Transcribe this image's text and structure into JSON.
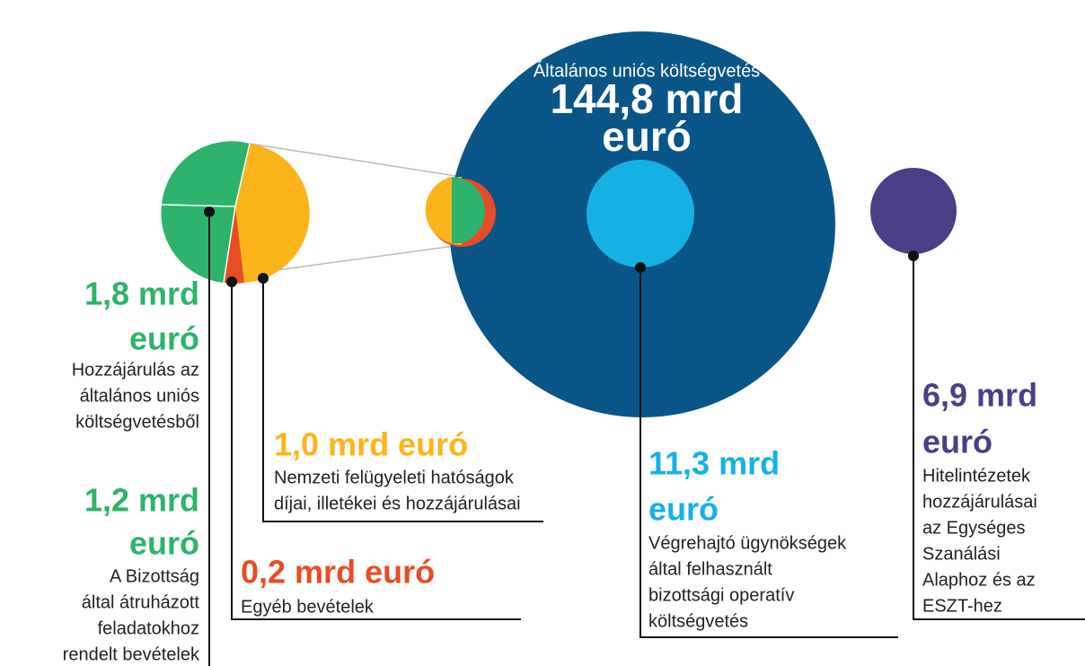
{
  "budget": {
    "title": "Általános uniós költségvetés",
    "amount": [
      "144,8 mrd",
      "euró"
    ]
  },
  "items": [
    {
      "amount": [
        "1,8 mrd",
        "euró"
      ],
      "description": [
        "Hozzájárulás az",
        "általános uniós",
        "költségvetésből"
      ]
    },
    {
      "amount": [
        "1,2 mrd",
        "euró"
      ],
      "description": [
        "A Bizottság",
        "által átruházott",
        "feladatokhoz",
        "rendelt bevételek"
      ]
    },
    {
      "amount": [
        "1,0 mrd euró"
      ],
      "description": [
        "Nemzeti felügyeleti hatóságok",
        "díjai, illetékei és hozzájárulásai"
      ]
    },
    {
      "amount": [
        "0,2 mrd euró"
      ],
      "description": [
        "Egyéb bevételek"
      ]
    },
    {
      "amount": [
        "11,3 mrd",
        "euró"
      ],
      "description": [
        "Végrehajtó ügynökségek",
        "által felhasznált",
        "bizottsági operatív",
        "költségvetés"
      ]
    },
    {
      "amount": [
        "6,9 mrd",
        "euró"
      ],
      "description": [
        "Hitelintézetek",
        "hozzájárulásai",
        "az Egységes",
        "Szanálási",
        "Alaphoz és az",
        "ESZT-hez"
      ]
    }
  ]
}
